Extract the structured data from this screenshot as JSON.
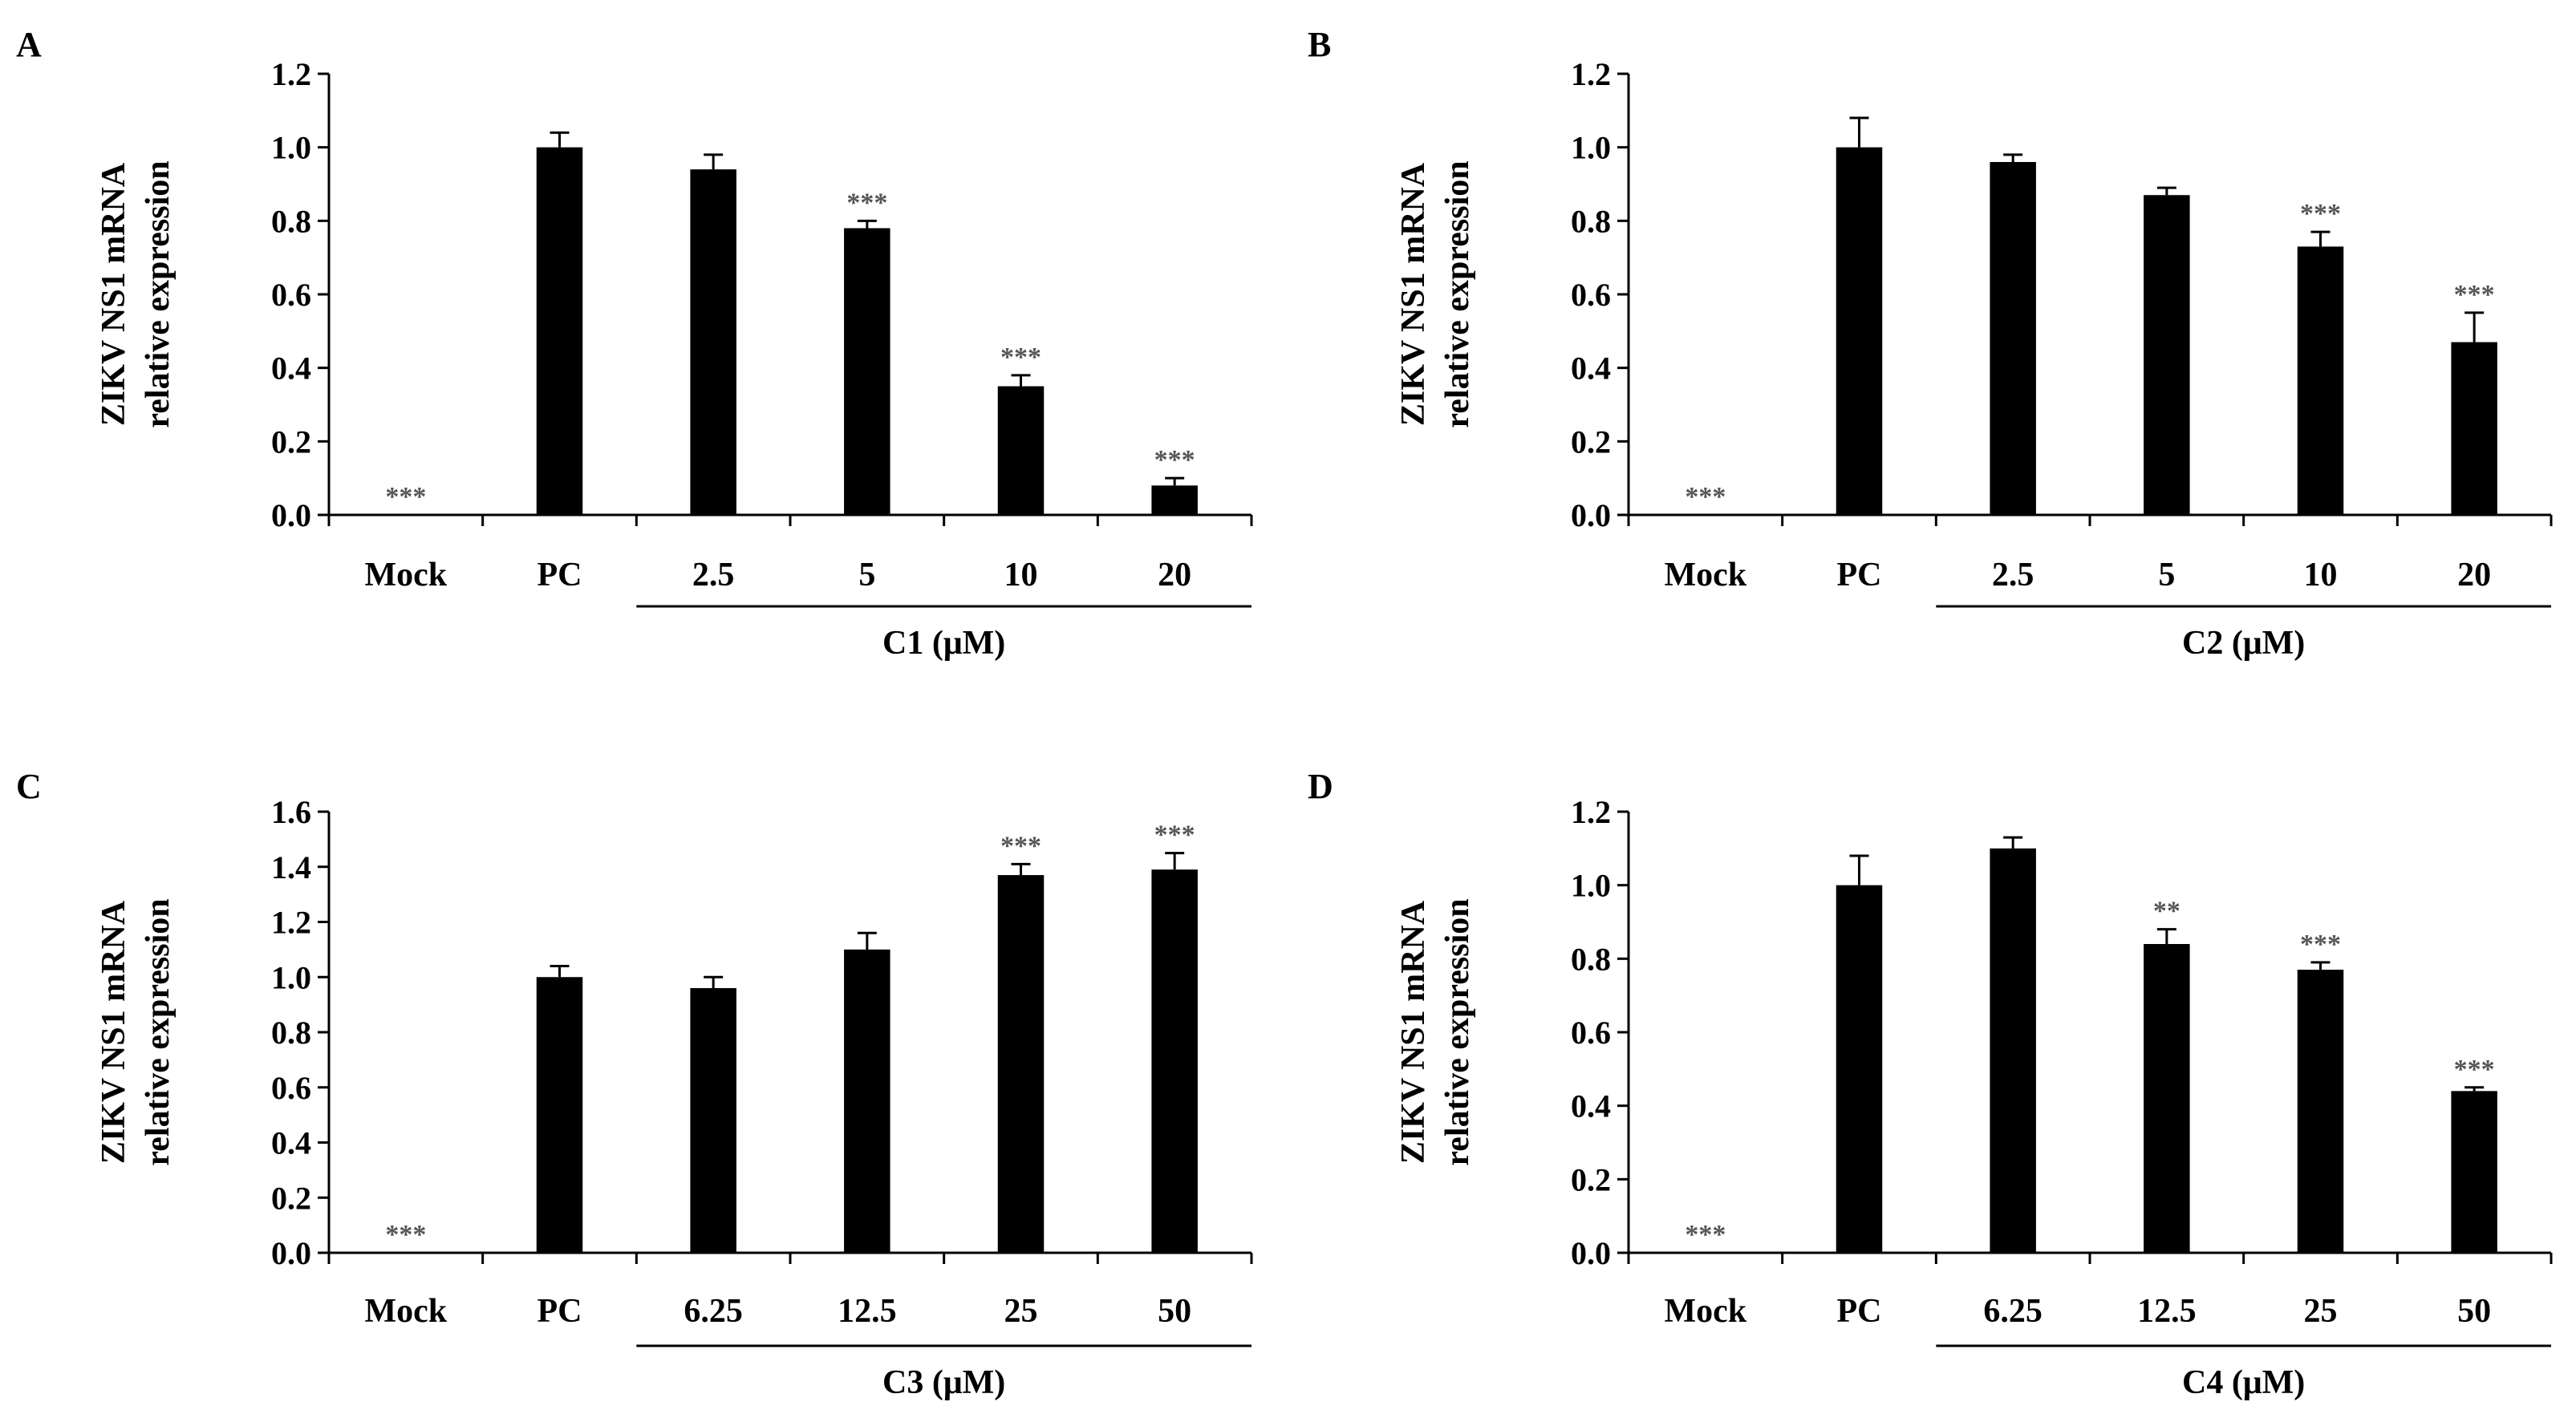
{
  "chart_data": [
    {
      "type": "bar",
      "panel": "A",
      "categories": [
        "Mock",
        "PC",
        "2.5",
        "5",
        "10",
        "20"
      ],
      "values": [
        0,
        1.0,
        0.94,
        0.78,
        0.35,
        0.08
      ],
      "errors": [
        0,
        0.04,
        0.04,
        0.02,
        0.03,
        0.02
      ],
      "significance": [
        "***",
        "",
        "",
        "***",
        "***",
        "***"
      ],
      "ylabel_line1": "ZIKV NS1 mRNA",
      "ylabel_line2": "relative expression",
      "group_label": "C1 (μM)",
      "group_from": 2,
      "ylim": [
        0,
        1.2
      ],
      "yticks": [
        "0.0",
        "0.2",
        "0.4",
        "0.6",
        "0.8",
        "1.0",
        "1.2"
      ]
    },
    {
      "type": "bar",
      "panel": "B",
      "categories": [
        "Mock",
        "PC",
        "2.5",
        "5",
        "10",
        "20"
      ],
      "values": [
        0,
        1.0,
        0.96,
        0.87,
        0.73,
        0.47
      ],
      "errors": [
        0,
        0.08,
        0.02,
        0.02,
        0.04,
        0.08
      ],
      "significance": [
        "***",
        "",
        "",
        "",
        "***",
        "***"
      ],
      "ylabel_line1": "ZIKV NS1 mRNA",
      "ylabel_line2": "relative expression",
      "group_label": "C2 (μM)",
      "group_from": 2,
      "ylim": [
        0,
        1.2
      ],
      "yticks": [
        "0.0",
        "0.2",
        "0.4",
        "0.6",
        "0.8",
        "1.0",
        "1.2"
      ]
    },
    {
      "type": "bar",
      "panel": "C",
      "categories": [
        "Mock",
        "PC",
        "6.25",
        "12.5",
        "25",
        "50"
      ],
      "values": [
        0,
        1.0,
        0.96,
        1.1,
        1.37,
        1.39
      ],
      "errors": [
        0,
        0.04,
        0.04,
        0.06,
        0.04,
        0.06
      ],
      "significance": [
        "***",
        "",
        "",
        "",
        "***",
        "***"
      ],
      "ylabel_line1": "ZIKV NS1 mRNA",
      "ylabel_line2": "relative expression",
      "group_label": "C3 (μM)",
      "group_from": 2,
      "ylim": [
        0,
        1.6
      ],
      "yticks": [
        "0.0",
        "0.2",
        "0.4",
        "0.6",
        "0.8",
        "1.0",
        "1.2",
        "1.4",
        "1.6"
      ]
    },
    {
      "type": "bar",
      "panel": "D",
      "categories": [
        "Mock",
        "PC",
        "6.25",
        "12.5",
        "25",
        "50"
      ],
      "values": [
        0,
        1.0,
        1.1,
        0.84,
        0.77,
        0.44
      ],
      "errors": [
        0,
        0.08,
        0.03,
        0.04,
        0.02,
        0.01
      ],
      "significance": [
        "***",
        "",
        "",
        "**",
        "***",
        "***"
      ],
      "ylabel_line1": "ZIKV NS1 mRNA",
      "ylabel_line2": "relative expression",
      "group_label": "C4 (μM)",
      "group_from": 2,
      "ylim": [
        0,
        1.2
      ],
      "yticks": [
        "0.0",
        "0.2",
        "0.4",
        "0.6",
        "0.8",
        "1.0",
        "1.2"
      ]
    }
  ]
}
